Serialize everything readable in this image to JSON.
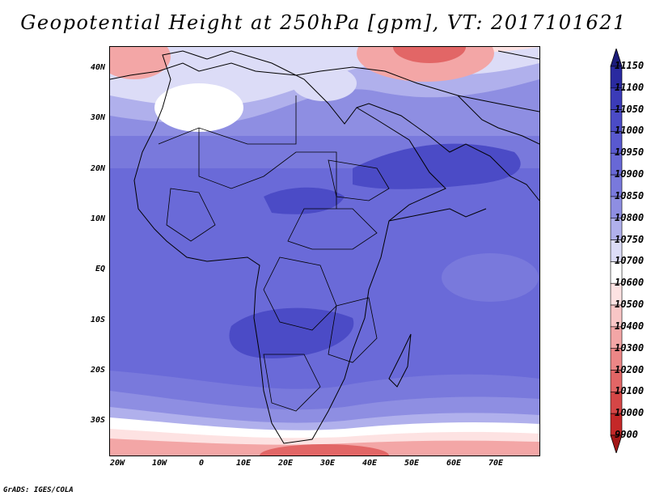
{
  "title": "Geopotential Height at 250hPa [gpm], VT: 2017101621",
  "credit": "GrADS: IGES/COLA",
  "map": {
    "region": "Africa, Middle East and western Indian Ocean",
    "lat_labels": [
      "40N",
      "30N",
      "20N",
      "10N",
      "EQ",
      "10S",
      "20S",
      "30S"
    ],
    "lon_labels": [
      "20W",
      "10W",
      "0",
      "10E",
      "20E",
      "30E",
      "40E",
      "50E",
      "60E",
      "70E"
    ]
  },
  "colorbar": {
    "levels": [
      "11150",
      "11100",
      "11050",
      "11000",
      "10950",
      "10900",
      "10850",
      "10800",
      "10750",
      "10700",
      "10600",
      "10500",
      "10400",
      "10300",
      "10200",
      "10100",
      "10000",
      "9900"
    ],
    "colors": [
      "#1c1c7a",
      "#2a2aa0",
      "#3b3bb8",
      "#4b4bc6",
      "#5959cf",
      "#6868d6",
      "#7979dc",
      "#8e8ee2",
      "#b0b0ec",
      "#dcdcf7",
      "#ffffff",
      "#fde2e2",
      "#f9c6c6",
      "#f3a6a6",
      "#ec8686",
      "#e26666",
      "#d54646",
      "#c42828",
      "#a31818"
    ]
  }
}
